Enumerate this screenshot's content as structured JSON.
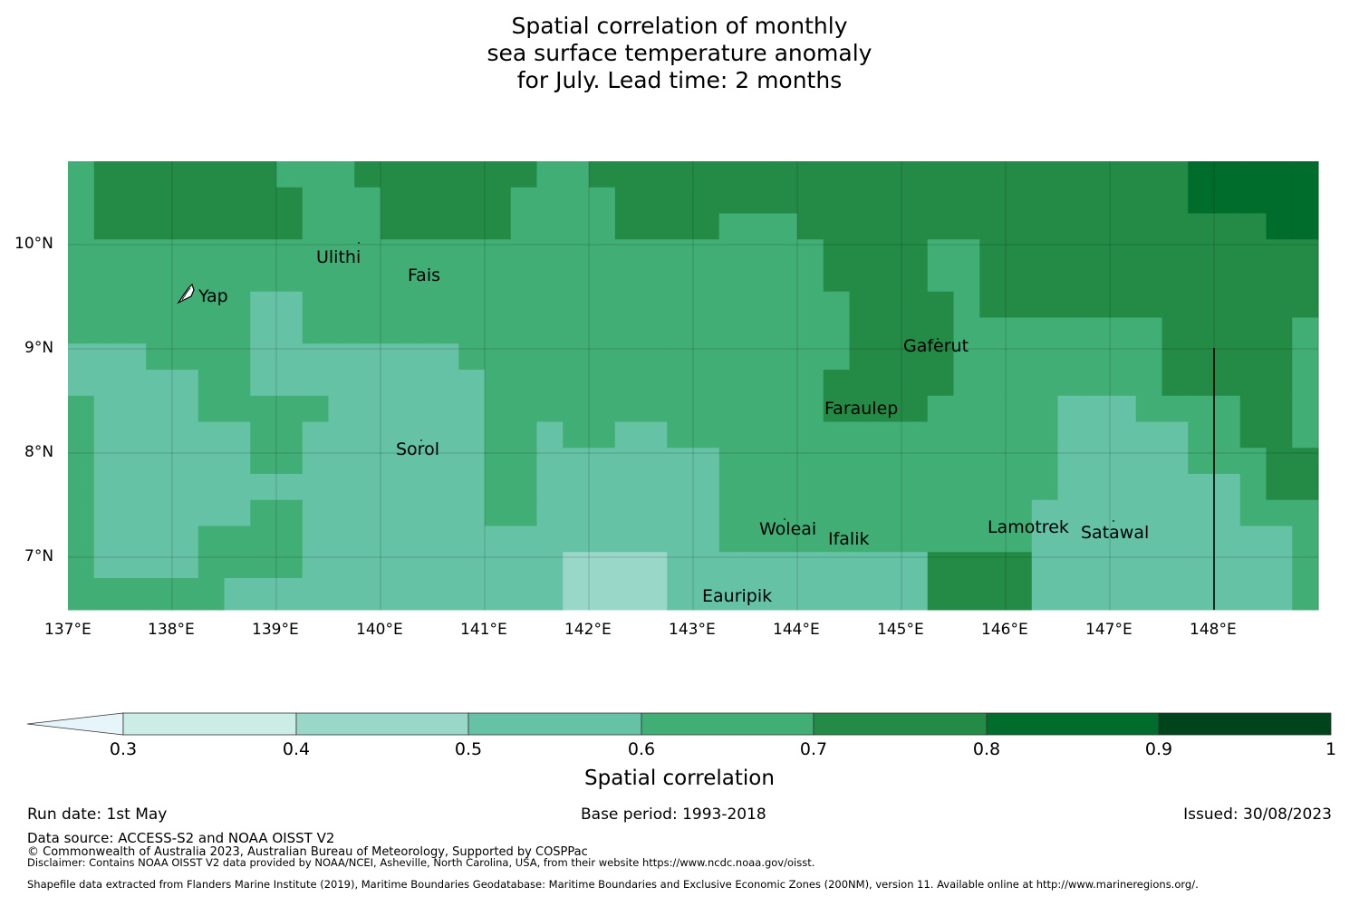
{
  "title": {
    "line1": "Spatial correlation of monthly",
    "line2": "sea surface temperature anomaly",
    "line3": "for July. Lead time: 2 months"
  },
  "map": {
    "lat_ticks": [
      "10°N",
      "9°N",
      "8°N",
      "7°N"
    ],
    "lon_ticks": [
      "137°E",
      "138°E",
      "139°E",
      "140°E",
      "141°E",
      "142°E",
      "143°E",
      "144°E",
      "145°E",
      "146°E",
      "147°E",
      "148°E"
    ],
    "extent": {
      "lon": [
        137.0,
        149.0
      ],
      "lat": [
        6.5,
        10.8
      ]
    },
    "islands": [
      "Ulithi",
      "Fais",
      "Yap",
      "Gaferut",
      "Faraulep",
      "Sorol",
      "Woleai",
      "Ifalik",
      "Lamotrek",
      "Satawal",
      "Eauripik"
    ],
    "eez_boundary_lon": 148.0
  },
  "legend": {
    "ticks": [
      "0.3",
      "0.4",
      "0.5",
      "0.6",
      "0.7",
      "0.8",
      "0.9",
      "1"
    ],
    "colors": [
      "#e5f5f9",
      "#ccece6",
      "#99d8c9",
      "#66c2a4",
      "#41ae76",
      "#238b45",
      "#006d2c",
      "#00441b"
    ],
    "label": "Spatial correlation"
  },
  "footer": {
    "run_date": "Run date: 1st May",
    "base_period": "Base period: 1993-2018",
    "issued": "Issued: 30/08/2023",
    "data_source": "Data source: ACCESS-S2 and NOAA OISST V2",
    "copyright": "© Commonwealth of Australia 2023, Australian Bureau of Meteorology, Supported by COSPPac",
    "disclaimer": "Disclaimer: Contains NOAA OISST V2 data provided by NOAA/NCEI, Asheville, North Carolina, USA, from their website https://www.ncdc.noaa.gov/oisst.",
    "shapefile": "Shapefile data extracted from Flanders Marine Institute (2019), Maritime Boundaries Geodatabase: Maritime Boundaries and Exclusive Economic Zones (200NM), version 11. Available online at http://www.marineregions.org/."
  }
}
